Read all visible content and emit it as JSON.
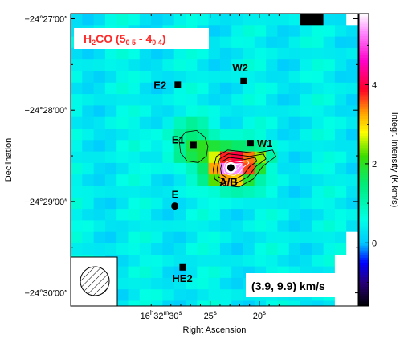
{
  "chart_data": {
    "type": "heatmap",
    "title": {
      "molecule": "H",
      "sub2": "2",
      "rest": "CO (5",
      "sub05": "0 5",
      "dash": " - 4",
      "sub04": "0 4",
      "close": ")"
    },
    "velocity_range": "(3.9, 9.9) km/s",
    "xlabel": "Right Ascension",
    "ylabel": "Declination",
    "colorbar_label": "Integr. Intensity (K km/s)",
    "colorbar_ticks": [
      "0",
      "2",
      "4"
    ],
    "colorbar_range": [
      -1.6,
      5.8
    ],
    "x_ticks": [
      {
        "hms": "16",
        "h": "h",
        "m": "32",
        "mm": "m",
        "s": "30",
        "ss": "s",
        "ra_sec": 30
      },
      {
        "s": "25",
        "ss": "s",
        "ra_sec": 25
      },
      {
        "s": "20",
        "ss": "s",
        "ra_sec": 20
      }
    ],
    "y_ticks": [
      {
        "label": "−24°27′00″",
        "dec_arcmin": -27
      },
      {
        "label": "−24°28′00″",
        "dec_arcmin": -28
      },
      {
        "label": "−24°29′00″",
        "dec_arcmin": -29
      },
      {
        "label": "−24°30′00″",
        "dec_arcmin": -30
      }
    ],
    "sources": [
      {
        "name": "E2",
        "marker": "square",
        "ra_sec": 28.3,
        "dec_arcmin": -27.72
      },
      {
        "name": "W2",
        "marker": "square",
        "ra_sec": 21.6,
        "dec_arcmin": -27.68
      },
      {
        "name": "E1",
        "marker": "square",
        "ra_sec": 26.7,
        "dec_arcmin": -28.38
      },
      {
        "name": "W1",
        "marker": "square",
        "ra_sec": 20.9,
        "dec_arcmin": -28.36
      },
      {
        "name": "A/B",
        "marker": "circle",
        "ra_sec": 22.9,
        "dec_arcmin": -28.63
      },
      {
        "name": "E",
        "marker": "circle",
        "ra_sec": 28.6,
        "dec_arcmin": -29.05
      },
      {
        "name": "HE2",
        "marker": "square",
        "ra_sec": 27.8,
        "dec_arcmin": -29.72
      }
    ],
    "peak_intensity": 5.5,
    "background_intensity": 0.4,
    "grid": false
  }
}
